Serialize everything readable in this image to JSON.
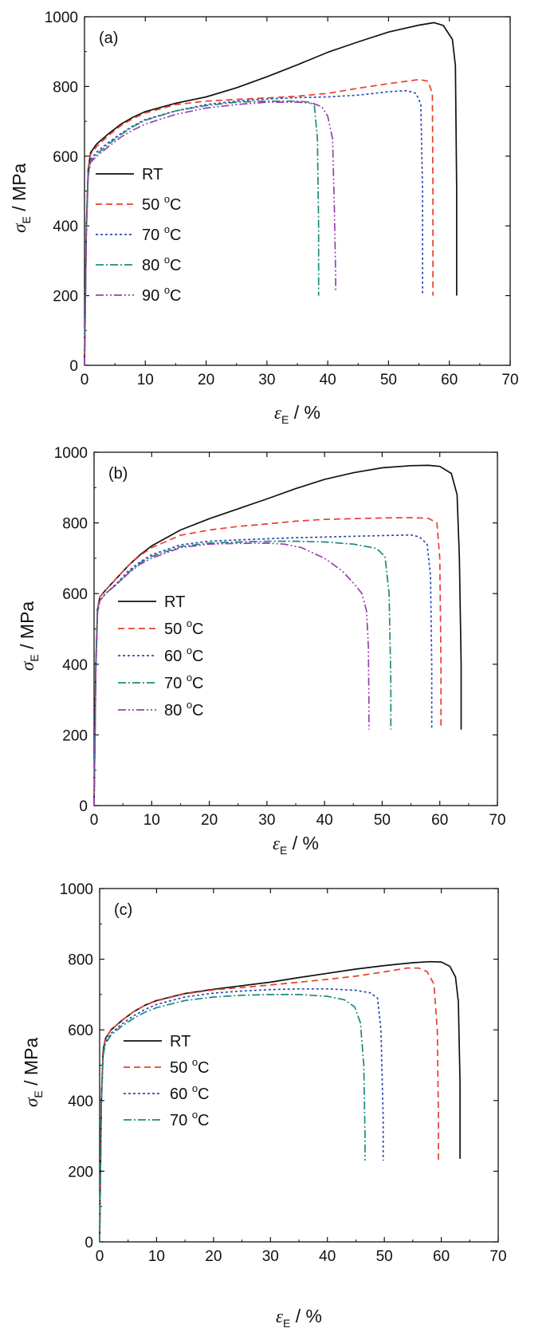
{
  "figure": {
    "x_axis_label": {
      "main": "ε",
      "sub": "E",
      "rest": " / %"
    },
    "y_axis_label": {
      "main": "σ",
      "sub": "E",
      "rest": " / MPa"
    }
  },
  "chart_data": [
    {
      "type": "line",
      "panel_label": "(a)",
      "xlim": [
        0,
        70
      ],
      "ylim": [
        0,
        1000
      ],
      "x_ticks": [
        0,
        10,
        20,
        30,
        40,
        50,
        60,
        70
      ],
      "y_ticks": [
        0,
        200,
        400,
        600,
        800,
        1000
      ],
      "legend_position": "left",
      "series": [
        {
          "name": "RT",
          "name_main": "RT",
          "name_deg": "",
          "name_unit": "",
          "color": "#111111",
          "dash": "none",
          "x": [
            0,
            0.3,
            0.6,
            1,
            2,
            4,
            6,
            8,
            10,
            15,
            20,
            25,
            30,
            35,
            40,
            45,
            50,
            55,
            57.5,
            59,
            60.5,
            61,
            61.2,
            61.2
          ],
          "y": [
            0,
            400,
            560,
            610,
            635,
            665,
            692,
            712,
            728,
            752,
            770,
            796,
            828,
            862,
            898,
            928,
            956,
            976,
            983,
            975,
            935,
            860,
            500,
            200
          ]
        },
        {
          "name": "50 °C",
          "name_main": "50 ",
          "name_deg": "o",
          "name_unit": "C",
          "color": "#e8402a",
          "dash": "8,5",
          "x": [
            0,
            0.3,
            0.6,
            1,
            2,
            4,
            6,
            8,
            10,
            15,
            20,
            25,
            30,
            35,
            40,
            45,
            50,
            55,
            56.5,
            57.2,
            57.3,
            57.3
          ],
          "y": [
            0,
            400,
            555,
            605,
            628,
            660,
            688,
            708,
            724,
            748,
            758,
            763,
            767,
            772,
            780,
            795,
            808,
            820,
            815,
            780,
            500,
            200
          ]
        },
        {
          "name": "70 °C",
          "name_main": "70 ",
          "name_deg": "o",
          "name_unit": "C",
          "color": "#2f49b8",
          "dash": "3,3",
          "x": [
            0,
            0.3,
            0.6,
            1,
            2,
            4,
            6,
            8,
            10,
            15,
            20,
            25,
            30,
            35,
            40,
            45,
            50,
            53,
            54.5,
            55.3,
            55.6,
            55.6
          ],
          "y": [
            0,
            380,
            545,
            590,
            612,
            640,
            665,
            687,
            705,
            730,
            748,
            758,
            764,
            768,
            770,
            775,
            785,
            788,
            780,
            750,
            500,
            200
          ]
        },
        {
          "name": "80 °C",
          "name_main": "80 ",
          "name_deg": "o",
          "name_unit": "C",
          "color": "#1f8a7c",
          "dash": "10,3,2,3",
          "x": [
            0,
            0.3,
            0.6,
            1,
            2,
            4,
            6,
            8,
            10,
            15,
            20,
            25,
            30,
            35,
            37,
            37.8,
            38.3,
            38.5,
            38.5
          ],
          "y": [
            0,
            380,
            545,
            585,
            605,
            635,
            662,
            685,
            703,
            730,
            745,
            755,
            758,
            758,
            755,
            745,
            650,
            400,
            200
          ]
        },
        {
          "name": "90 °C",
          "name_main": "90 ",
          "name_deg": "o",
          "name_unit": "C",
          "color": "#9a3fb0",
          "dash": "10,3,2,3,2,3",
          "x": [
            0,
            0.3,
            0.6,
            1,
            2,
            4,
            6,
            8,
            10,
            15,
            20,
            25,
            30,
            35,
            37.5,
            39,
            40,
            40.8,
            41.1,
            41.3,
            41.3
          ],
          "y": [
            0,
            380,
            540,
            582,
            600,
            628,
            655,
            675,
            692,
            720,
            738,
            748,
            755,
            755,
            752,
            742,
            715,
            650,
            450,
            250,
            210
          ]
        }
      ]
    },
    {
      "type": "line",
      "panel_label": "(b)",
      "xlim": [
        0,
        70
      ],
      "ylim": [
        0,
        1000
      ],
      "x_ticks": [
        0,
        10,
        20,
        30,
        40,
        50,
        60,
        70
      ],
      "y_ticks": [
        0,
        200,
        400,
        600,
        800,
        1000
      ],
      "legend_position": "left",
      "series": [
        {
          "name": "RT",
          "name_main": "RT",
          "name_deg": "",
          "name_unit": "",
          "color": "#111111",
          "dash": "none",
          "x": [
            0,
            0.3,
            0.6,
            1,
            2,
            4,
            6,
            8,
            10,
            15,
            20,
            25,
            30,
            35,
            40,
            45,
            50,
            55,
            58,
            60,
            62,
            63,
            63.4,
            63.7,
            63.7
          ],
          "y": [
            0,
            400,
            555,
            590,
            610,
            645,
            680,
            710,
            735,
            780,
            812,
            840,
            868,
            897,
            923,
            942,
            956,
            962,
            963,
            960,
            940,
            880,
            700,
            400,
            215
          ]
        },
        {
          "name": "50 °C",
          "name_main": "50 ",
          "name_deg": "o",
          "name_unit": "C",
          "color": "#e8402a",
          "dash": "8,5",
          "x": [
            0,
            0.3,
            0.6,
            1,
            2,
            4,
            6,
            8,
            10,
            15,
            20,
            25,
            30,
            35,
            40,
            45,
            50,
            55,
            58,
            59.5,
            60,
            60.2,
            60.2
          ],
          "y": [
            0,
            400,
            555,
            590,
            610,
            645,
            680,
            708,
            730,
            765,
            780,
            790,
            797,
            805,
            810,
            812,
            814,
            815,
            813,
            800,
            700,
            400,
            215
          ]
        },
        {
          "name": "60 °C",
          "name_main": "60 ",
          "name_deg": "o",
          "name_unit": "C",
          "color": "#2f49b8",
          "dash": "3,3",
          "x": [
            0,
            0.3,
            0.6,
            1,
            2,
            4,
            6,
            8,
            10,
            15,
            20,
            25,
            30,
            35,
            40,
            45,
            50,
            55,
            56.5,
            57.8,
            58.4,
            58.6,
            58.6
          ],
          "y": [
            0,
            380,
            545,
            580,
            600,
            630,
            665,
            690,
            710,
            738,
            748,
            752,
            755,
            758,
            760,
            762,
            764,
            766,
            760,
            740,
            650,
            400,
            215
          ]
        },
        {
          "name": "70 °C",
          "name_main": "70 ",
          "name_deg": "o",
          "name_unit": "C",
          "color": "#1f8a7c",
          "dash": "10,3,2,3",
          "x": [
            0,
            0.3,
            0.6,
            1,
            2,
            4,
            6,
            8,
            10,
            15,
            20,
            25,
            30,
            35,
            40,
            45,
            49,
            50.5,
            51.2,
            51.5,
            51.5
          ],
          "y": [
            0,
            380,
            545,
            580,
            600,
            628,
            660,
            687,
            705,
            733,
            743,
            746,
            748,
            748,
            746,
            740,
            728,
            705,
            600,
            350,
            215
          ]
        },
        {
          "name": "80 °C",
          "name_main": "80 ",
          "name_deg": "o",
          "name_unit": "C",
          "color": "#9a3fb0",
          "dash": "10,3,2,3,2,3",
          "x": [
            0,
            0.3,
            0.6,
            1,
            2,
            4,
            6,
            8,
            10,
            15,
            20,
            25,
            30,
            33,
            36,
            40,
            43,
            45,
            46.5,
            47.3,
            47.6,
            47.7,
            47.7
          ],
          "y": [
            0,
            380,
            545,
            580,
            600,
            627,
            658,
            683,
            700,
            730,
            740,
            742,
            743,
            740,
            730,
            700,
            665,
            630,
            600,
            550,
            450,
            300,
            215
          ]
        }
      ]
    },
    {
      "type": "line",
      "panel_label": "(c)",
      "xlim": [
        0,
        70
      ],
      "ylim": [
        0,
        1000
      ],
      "x_ticks": [
        0,
        10,
        20,
        30,
        40,
        50,
        60,
        70
      ],
      "y_ticks": [
        0,
        200,
        400,
        600,
        800,
        1000
      ],
      "legend_position": "left",
      "series": [
        {
          "name": "RT",
          "name_main": "RT",
          "name_deg": "",
          "name_unit": "",
          "color": "#111111",
          "dash": "none",
          "x": [
            0,
            0.3,
            0.6,
            1,
            2,
            4,
            6,
            8,
            10,
            15,
            20,
            25,
            30,
            35,
            40,
            45,
            50,
            55,
            58,
            60,
            61.5,
            62.5,
            63,
            63.3,
            63.3
          ],
          "y": [
            0,
            400,
            540,
            575,
            600,
            628,
            652,
            670,
            683,
            703,
            715,
            725,
            735,
            748,
            760,
            772,
            782,
            790,
            793,
            792,
            780,
            750,
            680,
            450,
            235
          ]
        },
        {
          "name": "50 °C",
          "name_main": "50 ",
          "name_deg": "o",
          "name_unit": "C",
          "color": "#e8402a",
          "dash": "8,5",
          "x": [
            0,
            0.3,
            0.6,
            1,
            2,
            4,
            6,
            8,
            10,
            15,
            20,
            25,
            30,
            35,
            40,
            45,
            50,
            54,
            56,
            57.5,
            58.7,
            59.3,
            59.5,
            59.5
          ],
          "y": [
            0,
            400,
            540,
            575,
            600,
            628,
            652,
            670,
            682,
            702,
            713,
            720,
            727,
            735,
            743,
            752,
            764,
            775,
            775,
            765,
            730,
            600,
            350,
            230
          ]
        },
        {
          "name": "60 °C",
          "name_main": "60 ",
          "name_deg": "o",
          "name_unit": "C",
          "color": "#2f49b8",
          "dash": "3,3",
          "x": [
            0,
            0.3,
            0.6,
            1,
            2,
            4,
            6,
            8,
            10,
            15,
            20,
            25,
            30,
            35,
            40,
            45,
            47.5,
            48.8,
            49.4,
            49.8,
            49.8
          ],
          "y": [
            0,
            380,
            530,
            565,
            590,
            618,
            640,
            658,
            672,
            693,
            704,
            710,
            714,
            716,
            716,
            712,
            705,
            690,
            600,
            350,
            230
          ]
        },
        {
          "name": "70 °C",
          "name_main": "70 ",
          "name_deg": "o",
          "name_unit": "C",
          "color": "#1f8a7c",
          "dash": "10,3,2,3",
          "x": [
            0,
            0.3,
            0.6,
            1,
            2,
            4,
            6,
            8,
            10,
            15,
            20,
            25,
            30,
            35,
            40,
            43,
            44.8,
            45.8,
            46.4,
            46.6,
            46.6
          ],
          "y": [
            0,
            380,
            525,
            560,
            585,
            612,
            633,
            650,
            663,
            683,
            693,
            698,
            700,
            700,
            695,
            685,
            665,
            620,
            500,
            300,
            230
          ]
        }
      ]
    }
  ]
}
